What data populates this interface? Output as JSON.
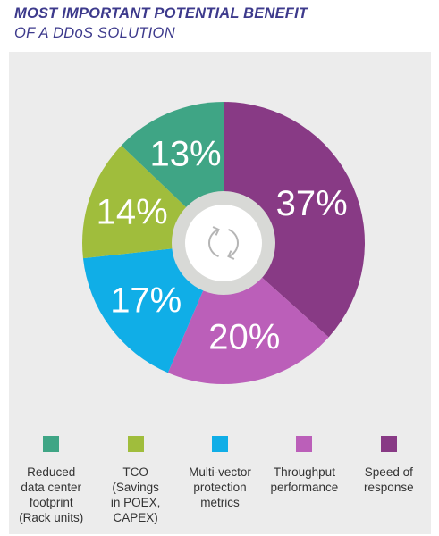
{
  "title": "MOST IMPORTANT POTENTIAL BENEFIT",
  "subtitle": "OF A DDoS SOLUTION",
  "center_icon": "refresh-cycle-icon",
  "chart_data": {
    "type": "pie",
    "title": "MOST IMPORTANT POTENTIAL BENEFIT OF A DDoS SOLUTION",
    "categories": [
      "Speed of response",
      "Throughput performance",
      "Multi-vector protection metrics",
      "TCO (Savings in POEX, CAPEX)",
      "Reduced data center footprint (Rack units)"
    ],
    "values": [
      37,
      20,
      17,
      14,
      13
    ],
    "value_labels": [
      "37%",
      "20%",
      "17%",
      "14%",
      "13%"
    ],
    "colors": [
      "#883a85",
      "#bb5fb9",
      "#10aee7",
      "#a0bd3c",
      "#3fa585"
    ],
    "style": "donut"
  },
  "legend": [
    {
      "label": "Reduced\ndata center\nfootprint\n(Rack units)",
      "color": "#3fa585"
    },
    {
      "label": "TCO\n(Savings\nin POEX,\nCAPEX)",
      "color": "#a0bd3c"
    },
    {
      "label": "Multi-vector\nprotection\nmetrics",
      "color": "#10aee7"
    },
    {
      "label": "Throughput\nperformance",
      "color": "#bb5fb9"
    },
    {
      "label": "Speed of\nresponse",
      "color": "#883a85"
    }
  ]
}
